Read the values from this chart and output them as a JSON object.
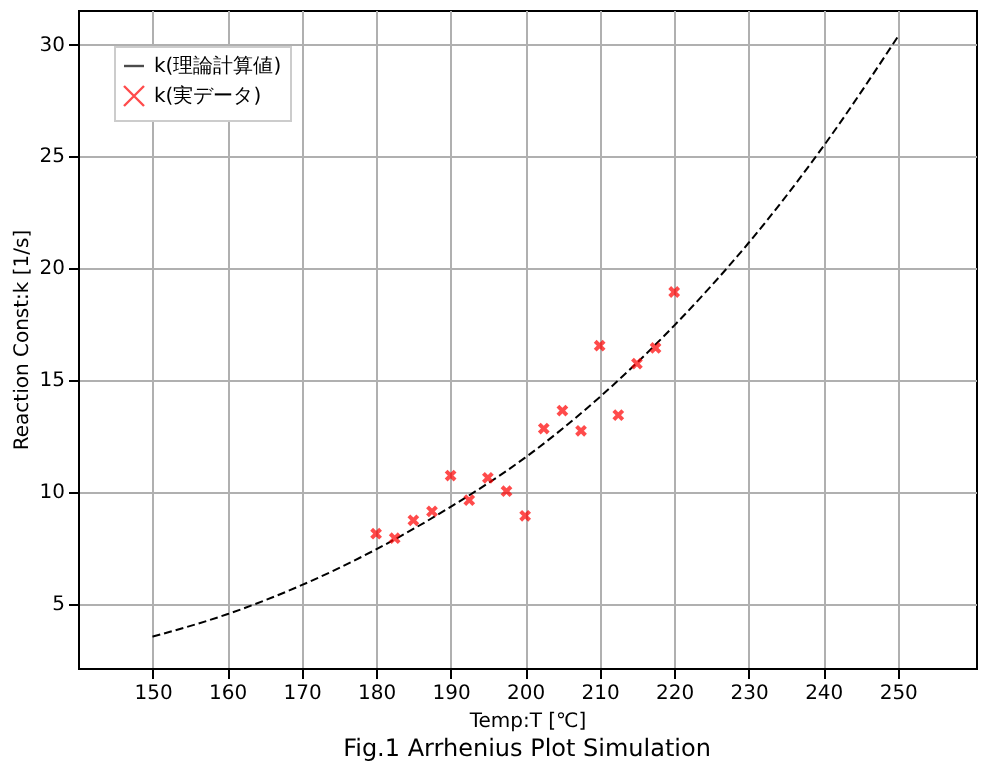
{
  "chart_data": {
    "type": "line",
    "title": "Fig.1 Arrhenius Plot Simulation",
    "xlabel": "Temp:T [℃]",
    "ylabel": "Reaction Const:k [1/s]",
    "series": [
      {
        "name": "k(理論計算値)",
        "color": "#000000",
        "line_style": "dashed",
        "marker": "none",
        "x": [
          150,
          160,
          170,
          180,
          190,
          200,
          210,
          220,
          230,
          240,
          250
        ],
        "values": [
          3.5,
          4.5,
          5.8,
          7.4,
          9.3,
          11.5,
          14.2,
          17.4,
          21.1,
          25.4,
          30.3
        ]
      },
      {
        "name": "k(実データ)",
        "type": "scatter",
        "color": "#ff0000",
        "marker": "cross",
        "x": [
          180,
          182.5,
          185,
          187.5,
          190,
          192.5,
          195,
          197.5,
          200,
          202.5,
          205,
          207.5,
          210,
          212.5,
          215,
          217.5,
          220
        ],
        "values": [
          8.1,
          7.9,
          8.7,
          9.1,
          10.7,
          9.6,
          10.6,
          10.0,
          8.9,
          12.8,
          13.6,
          12.7,
          16.5,
          13.4,
          15.7,
          16.4,
          18.9
        ]
      }
    ],
    "xlim": [
      140,
      260.5
    ],
    "ylim": [
      2.1,
      31.5
    ],
    "xticks": [
      150,
      160,
      170,
      180,
      190,
      200,
      210,
      220,
      230,
      240,
      250
    ],
    "yticks": [
      5,
      10,
      15,
      20,
      25,
      30
    ],
    "grid": true,
    "legend": "top left"
  }
}
